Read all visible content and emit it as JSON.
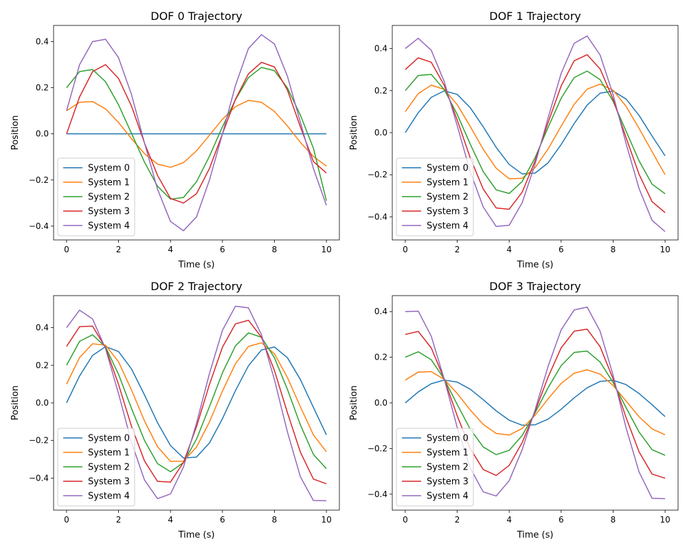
{
  "chart_data": [
    {
      "type": "line",
      "title": "DOF 0 Trajectory",
      "xlabel": "Time (s)",
      "ylabel": "Position",
      "xlim": [
        -0.5,
        10.5
      ],
      "ylim": [
        -0.46,
        0.47
      ],
      "xticks": [
        0,
        2,
        4,
        6,
        8,
        10
      ],
      "yticks": [
        -0.4,
        -0.2,
        0.0,
        0.2,
        0.4
      ],
      "ytick_labels": [
        "−0.4",
        "−0.2",
        "0.0",
        "0.2",
        "0.4"
      ],
      "legend": "lower-left",
      "grid": false,
      "x": [
        0,
        0.5,
        1,
        1.5,
        2,
        2.5,
        3,
        3.5,
        4,
        4.5,
        5,
        5.5,
        6,
        6.5,
        7,
        7.5,
        8,
        8.5,
        9,
        9.5,
        10
      ],
      "series": [
        {
          "name": "System 0",
          "color": "#1f77b4",
          "values": [
            0,
            0,
            0,
            0,
            0,
            0,
            0,
            0,
            0,
            0,
            0,
            0,
            0,
            0,
            0,
            0,
            0,
            0,
            0,
            0,
            0
          ]
        },
        {
          "name": "System 1",
          "color": "#ff7f0e",
          "values": [
            0.1,
            0.137,
            0.14,
            0.108,
            0.049,
            -0.021,
            -0.086,
            -0.131,
            -0.145,
            -0.125,
            -0.074,
            -0.006,
            0.063,
            0.118,
            0.145,
            0.137,
            0.097,
            0.034,
            -0.037,
            -0.098,
            -0.14
          ]
        },
        {
          "name": "System 2",
          "color": "#2ca02c",
          "values": [
            0.2,
            0.27,
            0.279,
            0.226,
            0.126,
            0.002,
            -0.123,
            -0.227,
            -0.283,
            -0.276,
            -0.208,
            -0.097,
            0.031,
            0.148,
            0.244,
            0.288,
            0.274,
            0.199,
            0.081,
            -0.062,
            -0.29
          ]
        },
        {
          "name": "System 3",
          "color": "#d62728",
          "values": [
            0,
            0.16,
            0.27,
            0.3,
            0.24,
            0.12,
            -0.04,
            -0.18,
            -0.28,
            -0.3,
            -0.26,
            -0.15,
            0.0,
            0.15,
            0.26,
            0.31,
            0.29,
            0.19,
            0.03,
            -0.12,
            -0.17
          ]
        },
        {
          "name": "System 4",
          "color": "#9467bd",
          "values": [
            0.1,
            0.3,
            0.4,
            0.41,
            0.33,
            0.17,
            -0.04,
            -0.24,
            -0.38,
            -0.42,
            -0.36,
            -0.2,
            0.0,
            0.21,
            0.37,
            0.43,
            0.39,
            0.25,
            0.05,
            -0.15,
            -0.31
          ]
        }
      ]
    },
    {
      "type": "line",
      "title": "DOF 1 Trajectory",
      "xlabel": "Time (s)",
      "ylabel": "Position",
      "xlim": [
        -0.5,
        10.5
      ],
      "ylim": [
        -0.51,
        0.51
      ],
      "xticks": [
        0,
        2,
        4,
        6,
        8,
        10
      ],
      "yticks": [
        -0.4,
        -0.2,
        0.0,
        0.2,
        0.4
      ],
      "ytick_labels": [
        "−0.4",
        "−0.2",
        "0.0",
        "0.2",
        "0.4"
      ],
      "legend": "lower-left",
      "grid": false,
      "x": [
        0,
        0.5,
        1,
        1.5,
        2,
        2.5,
        3,
        3.5,
        4,
        4.5,
        5,
        5.5,
        6,
        6.5,
        7,
        7.5,
        8,
        8.5,
        9,
        9.5,
        10
      ],
      "series": [
        {
          "name": "System 0",
          "color": "#1f77b4",
          "values": [
            0,
            0.095,
            0.168,
            0.199,
            0.182,
            0.119,
            0.028,
            -0.07,
            -0.151,
            -0.196,
            -0.192,
            -0.143,
            -0.056,
            0.043,
            0.131,
            0.188,
            0.198,
            0.16,
            0.082,
            -0.016,
            -0.11
          ]
        },
        {
          "name": "System 1",
          "color": "#ff7f0e",
          "values": [
            0.1,
            0.186,
            0.226,
            0.206,
            0.133,
            0.03,
            -0.079,
            -0.169,
            -0.219,
            -0.217,
            -0.166,
            -0.077,
            0.031,
            0.135,
            0.207,
            0.231,
            0.202,
            0.125,
            0.02,
            -0.09,
            -0.2
          ]
        },
        {
          "name": "System 2",
          "color": "#2ca02c",
          "values": [
            0.2,
            0.272,
            0.277,
            0.205,
            0.087,
            -0.054,
            -0.185,
            -0.272,
            -0.289,
            -0.232,
            -0.118,
            0.026,
            0.164,
            0.262,
            0.293,
            0.252,
            0.149,
            0.007,
            -0.134,
            -0.245,
            -0.29
          ]
        },
        {
          "name": "System 3",
          "color": "#d62728",
          "values": [
            0.3,
            0.356,
            0.335,
            0.225,
            0.06,
            -0.119,
            -0.268,
            -0.358,
            -0.364,
            -0.283,
            -0.133,
            0.049,
            0.222,
            0.342,
            0.371,
            0.303,
            0.159,
            -0.024,
            -0.198,
            -0.328,
            -0.38
          ]
        },
        {
          "name": "System 4",
          "color": "#9467bd",
          "values": [
            0.4,
            0.449,
            0.392,
            0.243,
            0.033,
            -0.185,
            -0.353,
            -0.446,
            -0.44,
            -0.333,
            -0.148,
            0.072,
            0.282,
            0.425,
            0.46,
            0.369,
            0.181,
            -0.052,
            -0.266,
            -0.417,
            -0.47
          ]
        }
      ]
    },
    {
      "type": "line",
      "title": "DOF 2 Trajectory",
      "xlabel": "Time (s)",
      "ylabel": "Position",
      "xlim": [
        -0.5,
        10.5
      ],
      "ylim": [
        -0.57,
        0.57
      ],
      "xticks": [
        0,
        2,
        4,
        6,
        8,
        10
      ],
      "yticks": [
        -0.4,
        -0.2,
        0.0,
        0.2,
        0.4
      ],
      "ytick_labels": [
        "−0.4",
        "−0.2",
        "0.0",
        "0.2",
        "0.4"
      ],
      "legend": "lower-left",
      "grid": false,
      "x": [
        0,
        0.5,
        1,
        1.5,
        2,
        2.5,
        3,
        3.5,
        4,
        4.5,
        5,
        5.5,
        6,
        6.5,
        7,
        7.5,
        8,
        8.5,
        9,
        9.5,
        10
      ],
      "series": [
        {
          "name": "System 0",
          "color": "#1f77b4",
          "values": [
            0,
            0.143,
            0.252,
            0.299,
            0.273,
            0.18,
            0.042,
            -0.105,
            -0.227,
            -0.293,
            -0.288,
            -0.213,
            -0.084,
            0.065,
            0.197,
            0.281,
            0.297,
            0.24,
            0.124,
            -0.024,
            -0.17
          ]
        },
        {
          "name": "System 1",
          "color": "#ff7f0e",
          "values": [
            0.1,
            0.241,
            0.314,
            0.307,
            0.218,
            0.068,
            -0.096,
            -0.233,
            -0.311,
            -0.31,
            -0.235,
            -0.101,
            0.063,
            0.208,
            0.3,
            0.319,
            0.261,
            0.135,
            -0.021,
            -0.17,
            -0.26
          ]
        },
        {
          "name": "System 2",
          "color": "#2ca02c",
          "values": [
            0.2,
            0.327,
            0.362,
            0.297,
            0.152,
            -0.03,
            -0.2,
            -0.323,
            -0.366,
            -0.317,
            -0.193,
            -0.02,
            0.16,
            0.303,
            0.372,
            0.349,
            0.24,
            0.072,
            -0.117,
            -0.274,
            -0.35
          ]
        },
        {
          "name": "System 3",
          "color": "#d62728",
          "values": [
            0.3,
            0.405,
            0.408,
            0.293,
            0.098,
            -0.125,
            -0.309,
            -0.417,
            -0.421,
            -0.316,
            -0.127,
            0.098,
            0.296,
            0.42,
            0.439,
            0.349,
            0.172,
            -0.052,
            -0.262,
            -0.405,
            -0.43
          ]
        },
        {
          "name": "System 4",
          "color": "#9467bd",
          "values": [
            0.4,
            0.493,
            0.446,
            0.288,
            0.049,
            -0.21,
            -0.41,
            -0.509,
            -0.484,
            -0.341,
            -0.108,
            0.156,
            0.386,
            0.514,
            0.505,
            0.363,
            0.123,
            -0.154,
            -0.393,
            -0.519,
            -0.52
          ]
        }
      ]
    },
    {
      "type": "line",
      "title": "DOF 3 Trajectory",
      "xlabel": "Time (s)",
      "ylabel": "Position",
      "xlim": [
        -0.5,
        10.5
      ],
      "ylim": [
        -0.47,
        0.47
      ],
      "xticks": [
        0,
        2,
        4,
        6,
        8,
        10
      ],
      "yticks": [
        -0.4,
        -0.2,
        0.0,
        0.2,
        0.4
      ],
      "ytick_labels": [
        "−0.4",
        "−0.2",
        "0.0",
        "0.2",
        "0.4"
      ],
      "legend": "lower-left",
      "grid": false,
      "x": [
        0,
        0.5,
        1,
        1.5,
        2,
        2.5,
        3,
        3.5,
        4,
        4.5,
        5,
        5.5,
        6,
        6.5,
        7,
        7.5,
        8,
        8.5,
        9,
        9.5,
        10
      ],
      "series": [
        {
          "name": "System 0",
          "color": "#1f77b4",
          "values": [
            0,
            0.048,
            0.084,
            0.1,
            0.091,
            0.06,
            0.014,
            -0.035,
            -0.076,
            -0.098,
            -0.096,
            -0.071,
            -0.028,
            0.022,
            0.066,
            0.094,
            0.099,
            0.08,
            0.041,
            -0.008,
            -0.06
          ]
        },
        {
          "name": "System 1",
          "color": "#ff7f0e",
          "values": [
            0.1,
            0.135,
            0.137,
            0.103,
            0.041,
            -0.031,
            -0.094,
            -0.134,
            -0.141,
            -0.112,
            -0.054,
            0.018,
            0.085,
            0.13,
            0.145,
            0.126,
            0.076,
            0.008,
            -0.061,
            -0.114,
            -0.14
          ]
        },
        {
          "name": "System 2",
          "color": "#2ca02c",
          "values": [
            0.2,
            0.224,
            0.189,
            0.104,
            -0.007,
            -0.115,
            -0.193,
            -0.227,
            -0.208,
            -0.143,
            -0.043,
            0.067,
            0.163,
            0.221,
            0.227,
            0.179,
            0.089,
            -0.021,
            -0.128,
            -0.205,
            -0.23
          ]
        },
        {
          "name": "System 3",
          "color": "#d62728",
          "values": [
            0.3,
            0.313,
            0.241,
            0.104,
            -0.057,
            -0.2,
            -0.292,
            -0.318,
            -0.274,
            -0.174,
            -0.036,
            0.114,
            0.241,
            0.314,
            0.323,
            0.246,
            0.105,
            -0.065,
            -0.215,
            -0.312,
            -0.33
          ]
        },
        {
          "name": "System 4",
          "color": "#9467bd",
          "values": [
            0.4,
            0.402,
            0.292,
            0.104,
            -0.108,
            -0.285,
            -0.39,
            -0.408,
            -0.341,
            -0.205,
            -0.029,
            0.161,
            0.32,
            0.407,
            0.42,
            0.314,
            0.121,
            -0.11,
            -0.303,
            -0.418,
            -0.42
          ]
        }
      ]
    }
  ]
}
